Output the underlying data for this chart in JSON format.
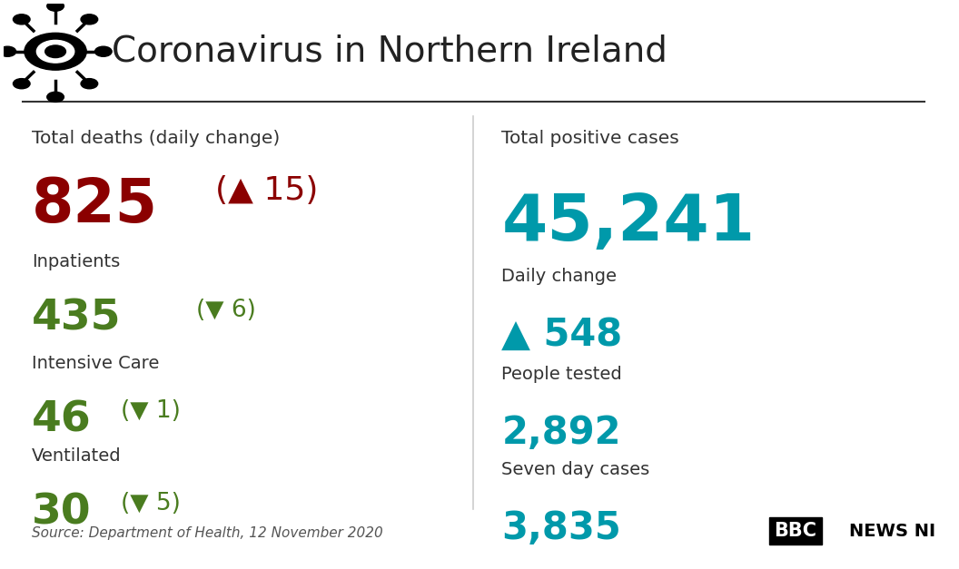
{
  "title": "Coronavirus in Northern Ireland",
  "title_fontsize": 28,
  "title_color": "#222222",
  "background_color": "#ffffff",
  "left_panel": {
    "total_deaths_label": "Total deaths (daily change)",
    "total_deaths_value": "825",
    "total_deaths_change": "(▲ 15)",
    "total_deaths_color": "#8B0000",
    "inpatients_label": "Inpatients",
    "inpatients_value": "435",
    "inpatients_change": "(▼ 6)",
    "inpatients_color": "#4a7c1f",
    "intensive_label": "Intensive Care",
    "intensive_value": "46",
    "intensive_change": "(▼ 1)",
    "intensive_color": "#4a7c1f",
    "ventilated_label": "Ventilated",
    "ventilated_value": "30",
    "ventilated_change": "(▼ 5)",
    "ventilated_color": "#4a7c1f"
  },
  "right_panel": {
    "total_positive_label": "Total positive cases",
    "total_positive_value": "45,241",
    "total_positive_color": "#0099aa",
    "daily_change_label": "Daily change",
    "daily_change_value": "▲ 548",
    "daily_change_color": "#0099aa",
    "people_tested_label": "People tested",
    "people_tested_value": "2,892",
    "people_tested_color": "#0099aa",
    "seven_day_label": "Seven day cases",
    "seven_day_value": "3,835",
    "seven_day_color": "#0099aa"
  },
  "source_text": "Source: Department of Health, 12 November 2020",
  "bbc_text": "BBC",
  "news_text": "NEWS NI",
  "label_color": "#333333"
}
